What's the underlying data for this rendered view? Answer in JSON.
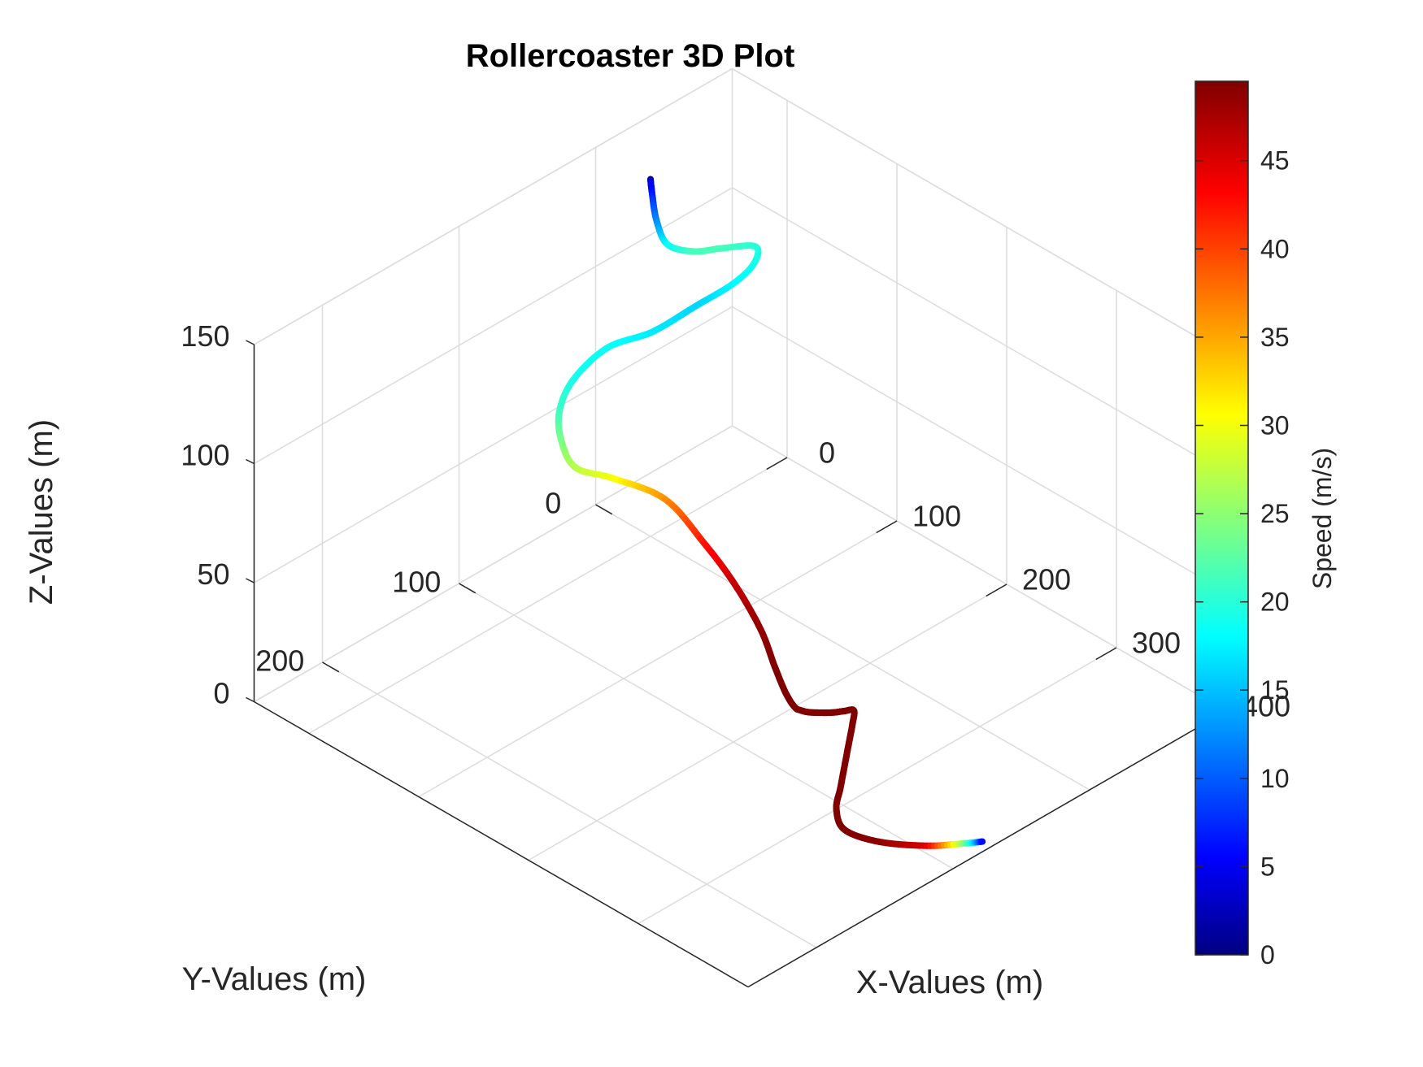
{
  "chart_data": {
    "type": "line3d",
    "title": "Rollercoaster 3D Plot",
    "xlabel": "X-Values (m)",
    "ylabel": "Y-Values (m)",
    "zlabel": "Z-Values (m)",
    "xlim": [
      -50,
      400
    ],
    "ylim": [
      -100,
      250
    ],
    "zlim": [
      0,
      150
    ],
    "x_ticks": [
      0,
      100,
      200,
      300,
      400
    ],
    "y_ticks": [
      0,
      100,
      200
    ],
    "z_ticks": [
      0,
      50,
      100,
      150
    ],
    "grid": true,
    "colormap": "jet",
    "colorbar": {
      "label": "Speed (m/s)",
      "range": [
        0,
        49.5
      ],
      "ticks": [
        0,
        5,
        10,
        15,
        20,
        25,
        30,
        35,
        40,
        45
      ]
    },
    "series": [
      {
        "x": [
          0,
          5,
          13,
          22,
          30,
          40,
          52,
          63,
          75,
          85,
          95,
          104,
          110,
          116,
          122,
          130,
          140,
          150,
          160,
          170,
          180,
          188,
          196,
          203,
          210,
          216,
          222,
          226,
          230,
          240,
          255,
          270,
          285,
          300,
          320,
          345,
          370,
          385,
          392
        ],
        "y": [
          0,
          3,
          6,
          5,
          -8,
          -20,
          -35,
          -25,
          0,
          35,
          75,
          115,
          145,
          160,
          163,
          159,
          140,
          110,
          90,
          75,
          64,
          60,
          58,
          56,
          54,
          50,
          45,
          40,
          36,
          45,
          60,
          75,
          90,
          105,
          115,
          110,
          95,
          80,
          72
        ],
        "z": [
          150,
          147,
          138,
          130,
          125,
          125,
          124,
          123,
          126,
          131,
          136,
          145,
          143,
          136,
          126,
          116,
          108,
          92,
          70,
          50,
          30,
          15,
          5,
          0,
          0,
          0,
          0,
          0,
          0,
          0,
          0,
          0,
          0,
          0,
          0,
          0,
          0,
          0,
          0
        ],
        "speed": [
          2,
          6,
          12,
          18,
          21.5,
          21.5,
          20,
          19,
          18,
          16,
          17,
          18.5,
          19,
          21,
          24,
          27,
          30,
          36,
          42,
          46,
          48.5,
          49.5,
          49.5,
          49.5,
          49.5,
          49.5,
          49.5,
          49.5,
          49.5,
          49.5,
          49.5,
          49.5,
          49.5,
          49.5,
          49.5,
          49,
          45,
          25,
          5
        ]
      }
    ]
  }
}
